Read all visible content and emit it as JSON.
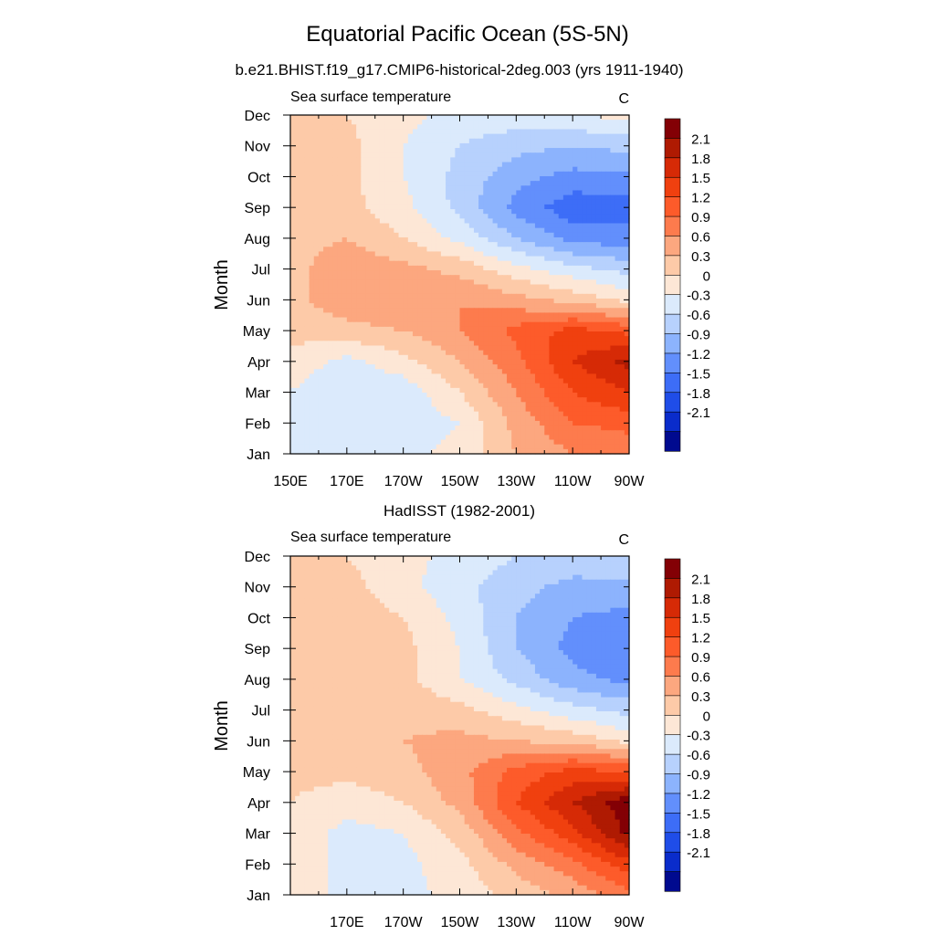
{
  "title": "Equatorial Pacific Ocean (5S-5N)",
  "chart_data": [
    {
      "type": "heatmap",
      "title": "b.e21.BHIST.f19_g17.CMIP6-historical-2deg.003 (yrs 1911-1940)",
      "left_label": "Sea surface temperature",
      "units": "C",
      "ylabel": "Month",
      "x_ticks": [
        "150E",
        "170E",
        "170W",
        "150W",
        "130W",
        "110W",
        "90W"
      ],
      "y_ticks": [
        "Jan",
        "Feb",
        "Mar",
        "Apr",
        "May",
        "Jun",
        "Jul",
        "Aug",
        "Sep",
        "Oct",
        "Nov",
        "Dec"
      ],
      "x": [
        150,
        170,
        190,
        210,
        230,
        250,
        270
      ],
      "y": [
        "Jan",
        "Feb",
        "Mar",
        "Apr",
        "May",
        "Jun",
        "Jul",
        "Aug",
        "Sep",
        "Oct",
        "Nov",
        "Dec"
      ],
      "z": [
        [
          -0.3,
          -0.3,
          -0.4,
          -0.2,
          0.3,
          0.6,
          0.7
        ],
        [
          -0.3,
          -0.5,
          -0.5,
          -0.3,
          0.4,
          0.9,
          1.0
        ],
        [
          -0.3,
          -0.6,
          -0.5,
          0.0,
          0.6,
          1.2,
          1.5
        ],
        [
          -0.1,
          -0.4,
          -0.1,
          0.3,
          0.8,
          1.5,
          1.9
        ],
        [
          0.1,
          0.2,
          0.3,
          0.6,
          1.0,
          1.3,
          1.1
        ],
        [
          0.2,
          0.5,
          0.6,
          0.6,
          0.4,
          0.2,
          -0.1
        ],
        [
          0.2,
          0.5,
          0.4,
          0.2,
          -0.2,
          -0.5,
          -0.7
        ],
        [
          0.2,
          0.3,
          0.0,
          -0.4,
          -0.9,
          -1.3,
          -1.4
        ],
        [
          0.2,
          0.1,
          -0.2,
          -0.7,
          -1.3,
          -1.7,
          -1.6
        ],
        [
          0.2,
          0.1,
          -0.3,
          -0.7,
          -1.1,
          -1.3,
          -1.3
        ],
        [
          0.2,
          0.1,
          -0.3,
          -0.6,
          -0.8,
          -0.9,
          -0.8
        ],
        [
          0.2,
          0.0,
          -0.2,
          -0.4,
          -0.4,
          -0.3,
          -0.2
        ]
      ]
    },
    {
      "type": "heatmap",
      "title": "HadISST (1982-2001)",
      "left_label": "Sea surface temperature",
      "units": "C",
      "ylabel": "Month",
      "x_ticks": [
        "170E",
        "170W",
        "150W",
        "130W",
        "110W",
        "90W"
      ],
      "y_ticks": [
        "Jan",
        "Feb",
        "Mar",
        "Apr",
        "May",
        "Jun",
        "Jul",
        "Aug",
        "Sep",
        "Oct",
        "Nov",
        "Dec"
      ],
      "x": [
        150,
        170,
        190,
        210,
        230,
        250,
        270
      ],
      "y": [
        "Jan",
        "Feb",
        "Mar",
        "Apr",
        "May",
        "Jun",
        "Jul",
        "Aug",
        "Sep",
        "Oct",
        "Nov",
        "Dec"
      ],
      "z": [
        [
          -0.1,
          -0.4,
          -0.4,
          -0.2,
          0.1,
          0.4,
          0.8
        ],
        [
          -0.1,
          -0.4,
          -0.4,
          -0.1,
          0.4,
          0.8,
          1.4
        ],
        [
          -0.1,
          -0.4,
          -0.3,
          0.1,
          0.8,
          1.4,
          2.2
        ],
        [
          0.0,
          -0.2,
          0.0,
          0.4,
          1.2,
          1.8,
          2.3
        ],
        [
          0.1,
          0.1,
          0.2,
          0.5,
          1.0,
          1.3,
          1.2
        ],
        [
          0.1,
          0.2,
          0.3,
          0.4,
          0.3,
          0.2,
          -0.1
        ],
        [
          0.1,
          0.2,
          0.2,
          0.1,
          -0.2,
          -0.5,
          -0.7
        ],
        [
          0.0,
          0.2,
          0.1,
          -0.3,
          -0.7,
          -1.1,
          -1.3
        ],
        [
          0.1,
          0.3,
          0.1,
          -0.3,
          -0.9,
          -1.3,
          -1.5
        ],
        [
          0.1,
          0.2,
          0.0,
          -0.4,
          -0.9,
          -1.2,
          -1.3
        ],
        [
          0.1,
          0.1,
          -0.2,
          -0.5,
          -0.8,
          -1.0,
          -1.0
        ],
        [
          0.0,
          0.0,
          -0.2,
          -0.4,
          -0.6,
          -0.7,
          -0.6
        ]
      ]
    }
  ],
  "colorbar": {
    "labels": [
      "2.1",
      "1.8",
      "1.5",
      "1.2",
      "0.9",
      "0.6",
      "0.3",
      "0",
      "-0.3",
      "-0.6",
      "-0.9",
      "-1.2",
      "-1.5",
      "-1.8",
      "-2.1"
    ],
    "colors": [
      "#830005",
      "#af1a02",
      "#d62a06",
      "#f0400f",
      "#fd5b2a",
      "#fd7b4d",
      "#fca77f",
      "#fdcaa8",
      "#fde7d6",
      "#dbeafc",
      "#b7d1fd",
      "#8cb3fd",
      "#628ffc",
      "#3d6df7",
      "#1f4de8",
      "#0a2ccb",
      "#000a8f"
    ]
  }
}
